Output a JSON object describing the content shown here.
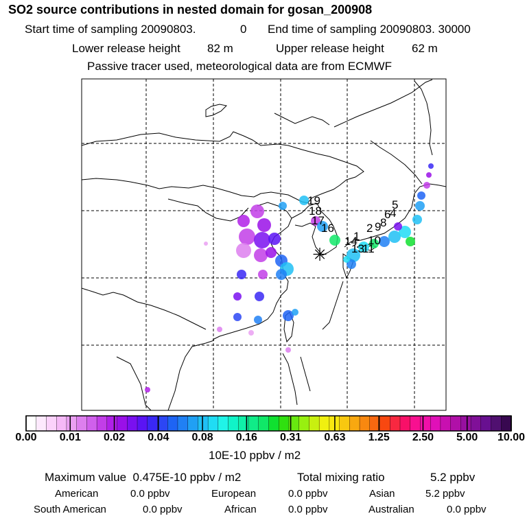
{
  "header": {
    "title": "SO2 source contributions in nested domain for gosan_200908",
    "start_label": "Start time of sampling 20090803.",
    "start_hour": "0",
    "end_label": "End time of sampling 20090803. 30000",
    "lower_label": "Lower release height",
    "lower_value": "82 m",
    "upper_label": "Upper release height",
    "upper_value": "62 m",
    "note": "Passive tracer used, meteorological data are from ECMWF"
  },
  "map": {
    "receptor_symbol": "✳",
    "labels": [
      "1",
      "2",
      "4",
      "5",
      "6",
      "8",
      "9",
      "10",
      "11",
      "13",
      "14",
      "16",
      "17",
      "18",
      "19"
    ],
    "colors": {
      "land_outline": "#000000",
      "grid": "#000000",
      "background": "#ffffff"
    }
  },
  "colorbar": {
    "unit": "10E-10 ppbv / m2",
    "ticks": [
      "0.00",
      "0.01",
      "0.02",
      "0.04",
      "0.08",
      "0.16",
      "0.31",
      "0.63",
      "1.25",
      "2.50",
      "5.00",
      "10.00"
    ],
    "colors": [
      "#ffffff",
      "#fde9fd",
      "#fbd2fb",
      "#f5b9f7",
      "#eaa0f2",
      "#dd7fee",
      "#d060ec",
      "#c23ee8",
      "#b020e8",
      "#9a10e8",
      "#7a10f0",
      "#5a14f4",
      "#3a28f4",
      "#2c46f4",
      "#1e64f4",
      "#2080f4",
      "#20a0f4",
      "#20c0f4",
      "#20dcf4",
      "#20f4e8",
      "#10f4c8",
      "#10f0a8",
      "#10ec88",
      "#10e868",
      "#10e030",
      "#30e010",
      "#68e810",
      "#98f010",
      "#c8f010",
      "#f0f010",
      "#f8e810",
      "#f8c810",
      "#f8a810",
      "#f88810",
      "#f86810",
      "#f84810",
      "#f82840",
      "#f81068",
      "#f81090",
      "#f010a8",
      "#e010b8",
      "#c810b0",
      "#b010a8",
      "#9810a0",
      "#801098",
      "#681090",
      "#501070",
      "#380850"
    ]
  },
  "summary": {
    "max_label": "Maximum value",
    "max_value": "0.475E-10 ppbv / m2",
    "total_label": "Total mixing ratio",
    "total_value": "5.2 ppbv",
    "regions": [
      {
        "name": "American",
        "value": "0.0 ppbv"
      },
      {
        "name": "European",
        "value": "0.0 ppbv"
      },
      {
        "name": "Asian",
        "value": "5.2 ppbv"
      },
      {
        "name": "South American",
        "value": "0.0 ppbv"
      },
      {
        "name": "African",
        "value": "0.0 ppbv"
      },
      {
        "name": "Australian",
        "value": "0.0 ppbv"
      }
    ]
  },
  "chart_data": {
    "type": "heatmap",
    "title": "SO2 source contributions in nested domain for gosan_200908",
    "colorbar_label": "10E-10 ppbv / m2",
    "colorbar_ticks": [
      0.0,
      0.01,
      0.02,
      0.04,
      0.08,
      0.16,
      0.31,
      0.63,
      1.25,
      2.5,
      5.0,
      10.0
    ],
    "max_value": "0.475E-10 ppbv / m2",
    "total_mixing_ratio": "5.2 ppbv",
    "grid": "on",
    "numbered_sources": [
      1,
      2,
      4,
      5,
      6,
      8,
      9,
      10,
      11,
      13,
      14,
      16,
      17,
      18,
      19
    ]
  }
}
